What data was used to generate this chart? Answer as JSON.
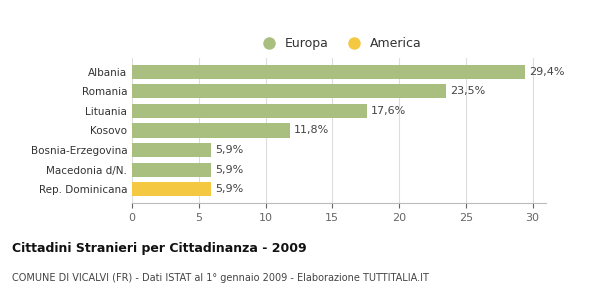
{
  "categories": [
    "Rep. Dominicana",
    "Macedonia d/N.",
    "Bosnia-Erzegovina",
    "Kosovo",
    "Lituania",
    "Romania",
    "Albania"
  ],
  "values": [
    5.9,
    5.9,
    5.9,
    11.8,
    17.6,
    23.5,
    29.4
  ],
  "labels": [
    "5,9%",
    "5,9%",
    "5,9%",
    "11,8%",
    "17,6%",
    "23,5%",
    "29,4%"
  ],
  "colors": [
    "#f5c842",
    "#a8bf80",
    "#a8bf80",
    "#a8bf80",
    "#a8bf80",
    "#a8bf80",
    "#a8bf80"
  ],
  "europa_color": "#a8bf80",
  "america_color": "#f5c842",
  "title": "Cittadini Stranieri per Cittadinanza - 2009",
  "subtitle": "COMUNE DI VICALVI (FR) - Dati ISTAT al 1° gennaio 2009 - Elaborazione TUTTITALIA.IT",
  "xlim": [
    0,
    31
  ],
  "xticks": [
    0,
    5,
    10,
    15,
    20,
    25,
    30
  ],
  "legend_europa": "Europa",
  "legend_america": "America",
  "background_color": "#ffffff",
  "bar_height": 0.72
}
